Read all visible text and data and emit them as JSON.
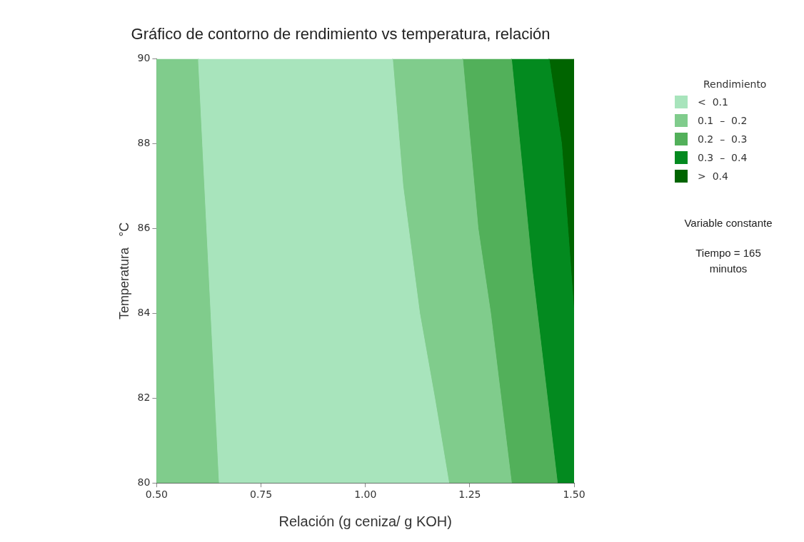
{
  "chart_data": {
    "type": "area",
    "title": "Gráfico de contorno de rendimiento vs temperatura, relación",
    "xlabel": "Relación (g ceniza/ g KOH)",
    "ylabel": "Temperatura   °C",
    "legend_title": "Rendimiento",
    "legend": "right",
    "grid": false,
    "marker": "none",
    "xlim": [
      0.5,
      1.5
    ],
    "ylim": [
      80,
      90
    ],
    "xticks": [
      {
        "value": 0.5,
        "label": "0.50"
      },
      {
        "value": 0.75,
        "label": "0.75"
      },
      {
        "value": 1,
        "label": "1.00"
      },
      {
        "value": 1.25,
        "label": "1.25"
      },
      {
        "value": 1.5,
        "label": "1.50"
      }
    ],
    "yticks": [
      80,
      82,
      84,
      86,
      88,
      90
    ],
    "series": [
      {
        "name": "<  0.1",
        "color": "#a8e4bc",
        "x": [
          0.6,
          0.615,
          0.63,
          0.65,
          1.2,
          1.166,
          1.13,
          1.09,
          1.065
        ],
        "values": [
          90,
          87,
          84,
          80,
          80,
          82,
          84,
          87,
          90
        ]
      },
      {
        "name": "0.1  –  0.2",
        "color": "#80cc8c",
        "x": [
          1.065,
          1.09,
          1.13,
          1.166,
          1.2,
          1.35,
          1.3,
          1.27,
          1.233
        ],
        "values": [
          90,
          87,
          84,
          82,
          80,
          80,
          84,
          86,
          90
        ]
      },
      {
        "name": "0.2  –  0.3",
        "color": "#52b05a",
        "x": [
          1.233,
          1.27,
          1.3,
          1.35,
          1.46,
          1.4,
          1.35
        ],
        "values": [
          90,
          86,
          84,
          80,
          80,
          85,
          90
        ]
      },
      {
        "name": "0.3  –  0.4",
        "color": "#038a1f",
        "x": [
          1.35,
          1.4,
          1.46,
          1.5,
          1.5,
          1.47,
          1.44
        ],
        "values": [
          90,
          85,
          80,
          80,
          84,
          88,
          90
        ]
      },
      {
        "name": ">  0.4",
        "color": "#006400",
        "x": [
          1.44,
          1.47,
          1.5,
          1.5
        ],
        "values": [
          90,
          88,
          84,
          90
        ]
      },
      {
        "color": "#80cc8c",
        "x": [
          0.5,
          0.5,
          0.65,
          0.63,
          0.615,
          0.6
        ],
        "values": [
          90,
          80,
          80,
          84,
          87,
          90
        ]
      }
    ],
    "annotations": [
      "Variable constante",
      "Tiempo = 165 minutos"
    ]
  }
}
